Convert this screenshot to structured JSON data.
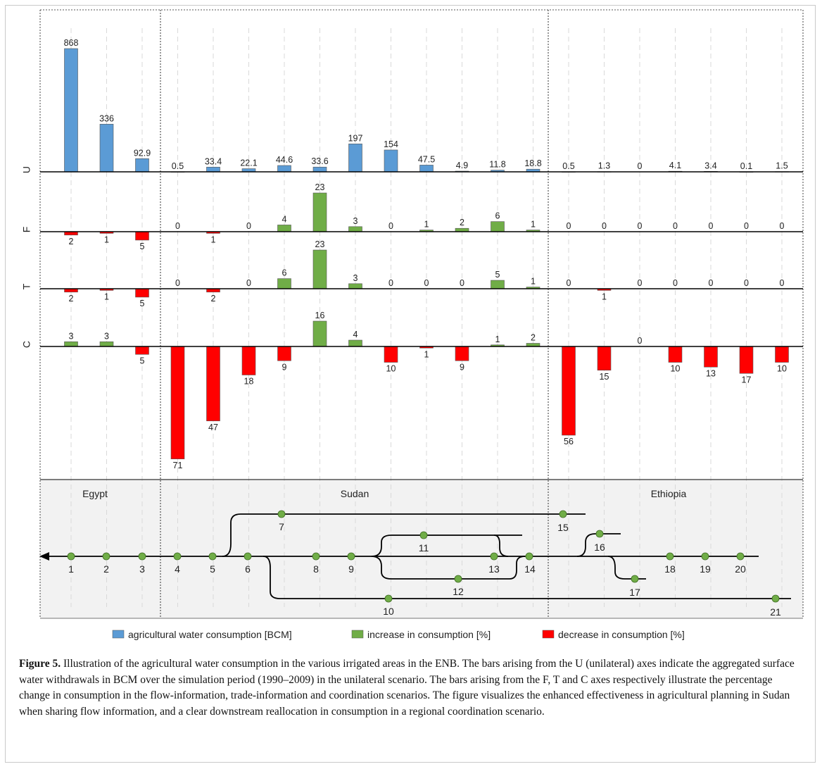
{
  "colors": {
    "blue": "#5b9bd5",
    "green": "#70ad47",
    "red": "#ff0000",
    "panel": "#f2f2f2",
    "node": "#70ad47"
  },
  "chart_data": {
    "type": "bar",
    "categories": [
      "1",
      "2",
      "3",
      "4",
      "5",
      "6",
      "7",
      "8",
      "9",
      "10",
      "11",
      "12",
      "13",
      "14",
      "15",
      "16",
      "17",
      "18",
      "19",
      "20",
      "21"
    ],
    "axes": [
      "U",
      "F",
      "T",
      "C"
    ],
    "series": [
      {
        "name": "agricultural water consumption [BCM]",
        "axis": "U",
        "values": [
          868,
          336,
          92.9,
          0.5,
          33.4,
          22.1,
          44.6,
          33.6,
          197,
          154,
          47.5,
          4.9,
          11.8,
          18.8,
          0.5,
          1.3,
          0,
          4.1,
          3.4,
          0.1,
          1.5
        ],
        "labels": [
          "868",
          "336",
          "92.9",
          "0.5",
          "33.4",
          "22.1",
          "44.6",
          "33.6",
          "197",
          "154",
          "47.5",
          "4.9",
          "11.8",
          "18.8",
          "0.5",
          "1.3",
          "0",
          "4.1",
          "3.4",
          "0.1",
          "1.5"
        ]
      },
      {
        "name": "F",
        "axis": "F",
        "unit": "%",
        "values": [
          -2,
          -1,
          -5,
          0,
          -1,
          0,
          4,
          23,
          3,
          0,
          1,
          2,
          6,
          1,
          0,
          0,
          0,
          0,
          0,
          0,
          0
        ],
        "labels": [
          "2",
          "1",
          "5",
          "0",
          "1",
          "0",
          "4",
          "23",
          "3",
          "0",
          "1",
          "2",
          "6",
          "1",
          "0",
          "0",
          "0",
          "0",
          "0",
          "0",
          "0"
        ]
      },
      {
        "name": "T",
        "axis": "T",
        "unit": "%",
        "values": [
          -2,
          -1,
          -5,
          0,
          -2,
          0,
          6,
          23,
          3,
          0,
          0,
          0,
          5,
          1,
          0,
          -1,
          0,
          0,
          0,
          0,
          0
        ],
        "labels": [
          "2",
          "1",
          "5",
          "0",
          "2",
          "0",
          "6",
          "23",
          "3",
          "0",
          "0",
          "0",
          "5",
          "1",
          "0",
          "1",
          "0",
          "0",
          "0",
          "0",
          "0"
        ]
      },
      {
        "name": "C",
        "axis": "C",
        "unit": "%",
        "values": [
          3,
          3,
          -5,
          -71,
          -47,
          -18,
          -9,
          16,
          4,
          -10,
          -1,
          -9,
          1,
          2,
          -56,
          -15,
          0,
          -10,
          -13,
          -17,
          -10
        ],
        "labels": [
          "3",
          "3",
          "5",
          "71",
          "47",
          "18",
          "9",
          "16",
          "4",
          "10",
          "1",
          "9",
          "1",
          "2",
          "56",
          "15",
          "0",
          "10",
          "13",
          "17",
          "10"
        ]
      }
    ],
    "legend": [
      {
        "label": "agricultural water consumption [BCM]",
        "color": "#5b9bd5"
      },
      {
        "label": "increase in consumption [%]",
        "color": "#70ad47"
      },
      {
        "label": "decrease in consumption [%]",
        "color": "#ff0000"
      }
    ],
    "regions": [
      "Egypt",
      "Sudan",
      "Ethiopia"
    ],
    "network_nodes": [
      "1",
      "2",
      "3",
      "4",
      "5",
      "6",
      "7",
      "8",
      "9",
      "10",
      "11",
      "12",
      "13",
      "14",
      "15",
      "16",
      "17",
      "18",
      "19",
      "20",
      "21"
    ],
    "legend_placement": "bottom"
  },
  "caption": {
    "label": "Figure 5.",
    "text": " Illustration of the agricultural water consumption in the various irrigated areas in the ENB. The bars arising from the U (unilateral) axes indicate the aggregated surface water withdrawals in BCM over the simulation period (1990–2009) in the unilateral scenario. The bars arising from the F, T and C axes respectively illustrate the percentage change in consumption in the flow-information, trade-information and coordination scenarios. The figure visualizes the enhanced effectiveness in agricultural planning in Sudan when sharing flow information, and a clear downstream reallocation in consumption in a regional coordination scenario."
  }
}
